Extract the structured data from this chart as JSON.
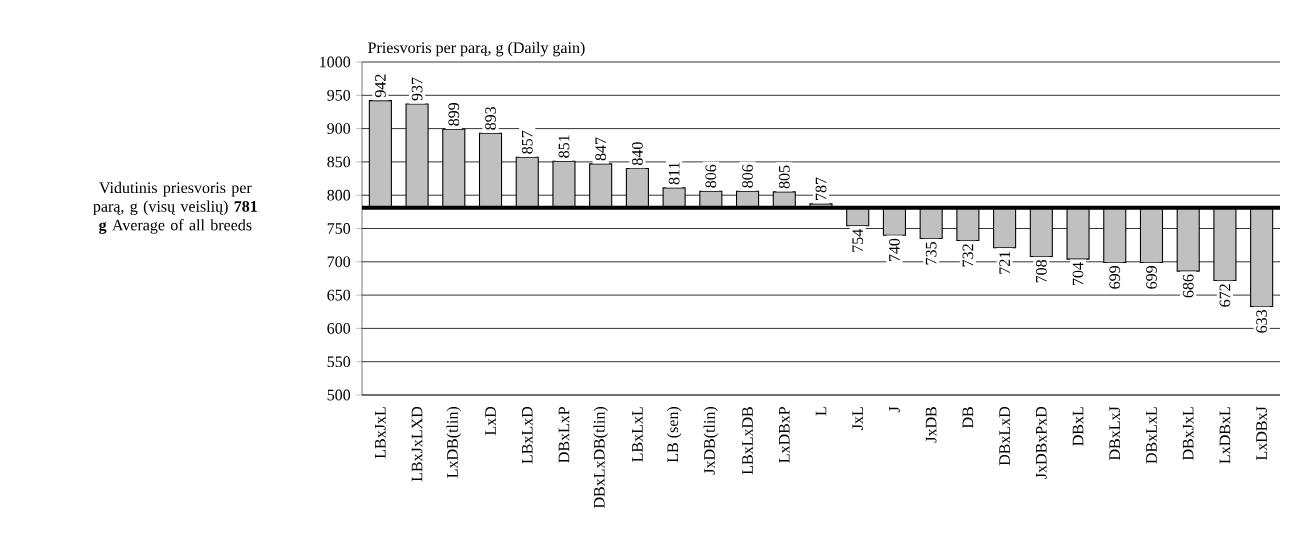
{
  "chart_data": {
    "type": "bar",
    "ylabel": "Priesvoris per parą, g (Daily gain)",
    "categories": [
      "LBxJxL",
      "LBxJxLXD",
      "LxDB(tlin)",
      "LxD",
      "LBxLxD",
      "DBxLxP",
      "DBxLxDB(tlin)",
      "LBxLxL",
      "LB (sen)",
      "JxDB(tlin)",
      "LBxLxDB",
      "LxDBxP",
      "L",
      "JxL",
      "J",
      "JxDB",
      "DB",
      "DBxLxD",
      "JxDBxPxD",
      "DBxL",
      "DBxLxJ",
      "DBxLxL",
      "DBxJxL",
      "LxDBxL",
      "LxDBxJ"
    ],
    "base": [
      781,
      781,
      781,
      781,
      781,
      781,
      781,
      781,
      781,
      781,
      781,
      781,
      781,
      781,
      781,
      781,
      781,
      781,
      781,
      781,
      781,
      781,
      781,
      781,
      781
    ],
    "values": [
      161,
      156,
      118,
      112,
      76,
      70,
      66,
      59,
      30,
      25,
      25,
      24,
      6,
      -27,
      -41,
      -46,
      -49,
      -60,
      -73,
      -77,
      -82,
      -82,
      -95,
      -109,
      -148
    ],
    "value_labels": [
      "942",
      "937",
      "899",
      "893",
      "857",
      "851",
      "847",
      "840",
      "811",
      "806",
      "806",
      "805",
      "787",
      "754",
      "740",
      "735",
      "732",
      "721",
      "708",
      "704",
      "699",
      "699",
      "686",
      "672",
      "633"
    ],
    "color": "#c0c0c0",
    "ylim": [
      500,
      1000
    ],
    "yticks": [
      500,
      550,
      600,
      650,
      700,
      750,
      800,
      850,
      900,
      950,
      1000
    ],
    "grid": "y",
    "ref_lines": [
      {
        "axis": "y",
        "value": 781,
        "label": "Vidutinis priesvoris per parą, g (visų veislių) **781 g** Average of all breeds",
        "color": "#000000",
        "line_style": "solid"
      }
    ]
  }
}
